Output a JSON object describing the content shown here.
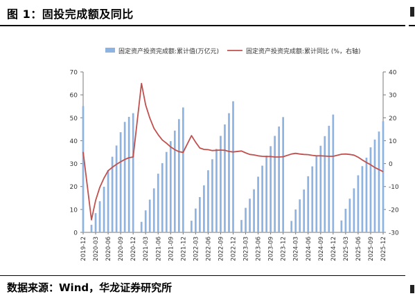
{
  "header": {
    "title": "图 1：固投完成额及同比"
  },
  "footer": {
    "source": "数据来源：Wind，华龙证券研究所"
  },
  "chart_data": {
    "type": "bar",
    "legend": {
      "bar": "固定资产投资完成额:累计值(万亿元)",
      "line": "固定资产投资完成额:累计同比 (%，右轴)",
      "placement": "top"
    },
    "colors": {
      "bar": "#8db3e2",
      "line": "#c0504d"
    },
    "y_left": {
      "ylim": [
        0,
        70
      ],
      "ticks": [
        "0",
        "10",
        "20",
        "30",
        "40",
        "50",
        "60",
        "70"
      ]
    },
    "y_right": {
      "ylim": [
        -30,
        40
      ],
      "ticks": [
        "-30",
        "-20",
        "-10",
        "0",
        "10",
        "20",
        "30",
        "40"
      ]
    },
    "x_ticks": [
      "2019-12",
      "2020-03",
      "2020-06",
      "2020-09",
      "2020-12",
      "2021-03",
      "2021-06",
      "2021-09",
      "2021-12",
      "2022-03",
      "2022-06",
      "2022-09",
      "2022-12",
      "2023-03",
      "2023-06",
      "2023-09",
      "2023-12",
      "2024-03",
      "2024-06",
      "2024-09",
      "2024-12",
      "2025-03",
      "2025-06",
      "2025-09",
      "2025-12"
    ],
    "series": [
      {
        "name": "固定资产投资完成额:累计值(万亿元)",
        "kind": "bar",
        "values": [
          55.1,
          null,
          3.3,
          8.4,
          13.6,
          19.9,
          27.2,
          33.0,
          37.9,
          43.7,
          48.2,
          50.4,
          52.0,
          null,
          4.6,
          9.6,
          14.3,
          19.2,
          25.6,
          30.2,
          35.1,
          39.8,
          44.4,
          49.4,
          54.5,
          null,
          5.1,
          10.4,
          15.4,
          20.5,
          27.1,
          31.9,
          36.4,
          42.1,
          47.1,
          52.0,
          57.2,
          null,
          5.4,
          10.7,
          14.7,
          18.8,
          24.3,
          29.1,
          33.5,
          37.6,
          42.1,
          46.2,
          50.3,
          null,
          5.0,
          10.0,
          14.4,
          18.7,
          24.5,
          28.8,
          33.5,
          37.8,
          42.0,
          46.5,
          51.4,
          null,
          5.2,
          10.3,
          14.7,
          19.2,
          24.9,
          28.9,
          32.6,
          37.1,
          40.5,
          44.0,
          48.5
        ]
      },
      {
        "name": "固定资产投资完成额:累计同比 (%，右轴)",
        "kind": "line",
        "values": [
          5.1,
          null,
          -24.5,
          -16.1,
          -10.3,
          -6.3,
          -3.1,
          -1.6,
          -0.3,
          0.8,
          1.8,
          2.6,
          2.9,
          null,
          35.0,
          25.6,
          19.9,
          15.4,
          12.6,
          10.3,
          8.9,
          7.3,
          6.1,
          5.2,
          4.9,
          null,
          12.2,
          9.3,
          6.8,
          6.2,
          6.1,
          5.7,
          5.8,
          5.9,
          5.8,
          5.3,
          5.1,
          null,
          5.5,
          4.7,
          4.0,
          3.8,
          3.4,
          3.2,
          3.1,
          3.1,
          2.9,
          2.9,
          3.0,
          null,
          4.2,
          4.5,
          4.2,
          4.0,
          3.9,
          3.6,
          3.4,
          3.4,
          3.3,
          3.2,
          3.2,
          null,
          4.1,
          4.2,
          4.0,
          3.7,
          2.8,
          1.6,
          0.5,
          -0.5,
          -1.7,
          -2.6,
          -3.5
        ]
      }
    ]
  }
}
